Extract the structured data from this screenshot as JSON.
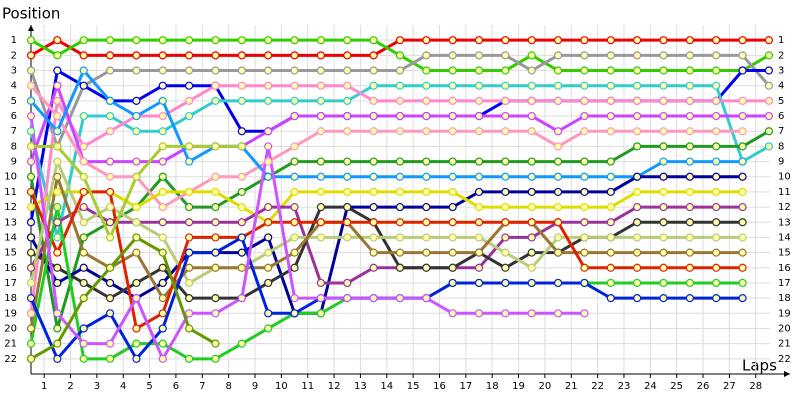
{
  "chart_data": {
    "type": "line",
    "y_axis_label": "Position",
    "x_axis_label": "Laps",
    "x": [
      0,
      1,
      2,
      3,
      4,
      5,
      6,
      7,
      8,
      9,
      10,
      11,
      12,
      13,
      14,
      15,
      16,
      17,
      18,
      19,
      20,
      21,
      22,
      23,
      24,
      25,
      26,
      27,
      28
    ],
    "xlim": [
      0,
      28.8
    ],
    "xticks": [
      {
        "value": 0.5,
        "label": "1"
      },
      {
        "value": 1.5,
        "label": "2"
      },
      {
        "value": 2.5,
        "label": "3"
      },
      {
        "value": 3.5,
        "label": "4"
      },
      {
        "value": 4.5,
        "label": "5"
      },
      {
        "value": 5.5,
        "label": "6"
      },
      {
        "value": 6.5,
        "label": "7"
      },
      {
        "value": 7.5,
        "label": "8"
      },
      {
        "value": 8.5,
        "label": "9"
      },
      {
        "value": 9.5,
        "label": "10"
      },
      {
        "value": 10.5,
        "label": "11"
      },
      {
        "value": 11.5,
        "label": "12"
      },
      {
        "value": 12.5,
        "label": "13"
      },
      {
        "value": 13.5,
        "label": "14"
      },
      {
        "value": 14.5,
        "label": "15"
      },
      {
        "value": 15.5,
        "label": "16"
      },
      {
        "value": 16.5,
        "label": "17"
      },
      {
        "value": 17.5,
        "label": "18"
      },
      {
        "value": 18.5,
        "label": "19"
      },
      {
        "value": 19.5,
        "label": "20"
      },
      {
        "value": 20.5,
        "label": "21"
      },
      {
        "value": 21.5,
        "label": "22"
      },
      {
        "value": 22.5,
        "label": "23"
      },
      {
        "value": 23.5,
        "label": "24"
      },
      {
        "value": 24.5,
        "label": "25"
      },
      {
        "value": 25.5,
        "label": "26"
      },
      {
        "value": 26.5,
        "label": "27"
      },
      {
        "value": 27.5,
        "label": "28"
      }
    ],
    "ylim": [
      23,
      0
    ],
    "yticks": [
      1,
      2,
      3,
      4,
      5,
      6,
      7,
      8,
      9,
      10,
      11,
      12,
      13,
      14,
      15,
      16,
      17,
      18,
      19,
      20,
      21,
      22
    ],
    "end_labels": [
      1,
      2,
      3,
      4,
      5,
      6,
      7,
      8,
      9,
      10,
      11,
      12,
      13,
      14,
      15,
      16,
      17,
      18,
      19,
      20,
      21,
      22
    ],
    "grid": true,
    "series": [
      {
        "color": "#ee0000",
        "values": [
          2,
          1,
          2,
          2,
          2,
          2,
          2,
          2,
          2,
          2,
          2,
          2,
          2,
          2,
          1,
          1,
          1,
          1,
          1,
          1,
          1,
          1,
          1,
          1,
          1,
          1,
          1,
          1,
          1
        ]
      },
      {
        "color": "#33cc00",
        "values": [
          1,
          2,
          1,
          1,
          1,
          1,
          1,
          1,
          1,
          1,
          1,
          1,
          1,
          1,
          2,
          3,
          3,
          3,
          3,
          2,
          3,
          3,
          3,
          3,
          3,
          3,
          3,
          3,
          2
        ]
      },
      {
        "color": "#999999",
        "values": [
          3,
          8,
          4,
          3,
          3,
          3,
          3,
          3,
          3,
          3,
          3,
          3,
          3,
          3,
          3,
          2,
          2,
          2,
          2,
          3,
          2,
          2,
          2,
          2,
          2,
          2,
          2,
          2,
          4
        ]
      },
      {
        "color": "#0000ee",
        "values": [
          13,
          3,
          4,
          5,
          5,
          4,
          4,
          4,
          7,
          7,
          6,
          6,
          6,
          6,
          6,
          6,
          6,
          6,
          5,
          5,
          5,
          5,
          5,
          5,
          5,
          5,
          5,
          3,
          3
        ]
      },
      {
        "color": "#33cccc",
        "values": [
          7,
          14,
          6,
          6,
          7,
          7,
          6,
          5,
          5,
          5,
          5,
          5,
          5,
          4,
          4,
          4,
          4,
          4,
          4,
          4,
          4,
          4,
          4,
          4,
          4,
          4,
          4,
          9,
          8
        ]
      },
      {
        "color": "#ff88cc",
        "values": [
          19,
          5,
          8,
          7,
          6,
          6,
          5,
          4,
          4,
          4,
          4,
          4,
          4,
          5,
          5,
          5,
          5,
          5,
          5,
          5,
          5,
          5,
          5,
          5,
          5,
          5,
          5,
          5,
          5
        ]
      },
      {
        "color": "#cc44ff",
        "values": [
          9,
          4,
          9,
          9,
          9,
          9,
          8,
          8,
          8,
          7,
          6,
          6,
          6,
          6,
          6,
          6,
          6,
          6,
          6,
          6,
          7,
          6,
          6,
          6,
          6,
          6,
          6,
          6,
          6
        ]
      },
      {
        "color": "#229922",
        "values": [
          10,
          20,
          14,
          13,
          12,
          10,
          12,
          12,
          11,
          10,
          9,
          9,
          9,
          9,
          9,
          9,
          9,
          9,
          9,
          9,
          9,
          9,
          9,
          8,
          8,
          8,
          8,
          8,
          7
        ]
      },
      {
        "color": "#ff99bb",
        "values": [
          4,
          6,
          9,
          10,
          10,
          12,
          11,
          10,
          10,
          9,
          8,
          7,
          7,
          7,
          7,
          7,
          7,
          7,
          7,
          7,
          8,
          7,
          7,
          7,
          7,
          7,
          7,
          7,
          null
        ]
      },
      {
        "color": "#1199ff",
        "values": [
          5,
          7,
          3,
          5,
          6,
          5,
          9,
          8,
          8,
          10,
          10,
          10,
          10,
          10,
          10,
          10,
          10,
          10,
          10,
          10,
          10,
          10,
          10,
          10,
          9,
          9,
          9,
          9,
          null
        ]
      },
      {
        "color": "#000099",
        "values": [
          14,
          17,
          16,
          17,
          18,
          17,
          15,
          15,
          15,
          14,
          19,
          19,
          12,
          12,
          12,
          12,
          12,
          11,
          11,
          11,
          11,
          11,
          11,
          10,
          10,
          10,
          10,
          10,
          null
        ]
      },
      {
        "color": "#dddd00",
        "values": [
          12,
          11,
          11,
          11,
          12,
          11,
          11,
          11,
          12,
          13,
          11,
          11,
          11,
          11,
          11,
          11,
          11,
          12,
          12,
          12,
          12,
          12,
          12,
          11,
          11,
          11,
          11,
          11,
          null
        ]
      },
      {
        "color": "#993399",
        "values": [
          16,
          13,
          12,
          13,
          13,
          13,
          13,
          13,
          13,
          12,
          12,
          17,
          17,
          16,
          16,
          16,
          16,
          16,
          14,
          14,
          13,
          13,
          13,
          12,
          12,
          12,
          12,
          12,
          null
        ]
      },
      {
        "color": "#333333",
        "values": [
          15,
          16,
          17,
          18,
          17,
          16,
          18,
          18,
          18,
          17,
          16,
          12,
          12,
          13,
          16,
          16,
          16,
          15,
          16,
          15,
          15,
          14,
          14,
          13,
          13,
          13,
          13,
          13,
          null
        ]
      },
      {
        "color": "#bbcc77",
        "values": [
          17,
          9,
          13,
          12,
          13,
          14,
          17,
          16,
          16,
          15,
          14,
          14,
          14,
          14,
          14,
          14,
          14,
          14,
          15,
          16,
          14,
          14,
          14,
          14,
          14,
          14,
          14,
          14,
          null
        ]
      },
      {
        "color": "#997733",
        "values": [
          20,
          10,
          15,
          16,
          15,
          18,
          16,
          16,
          16,
          16,
          15,
          13,
          13,
          15,
          15,
          15,
          15,
          15,
          13,
          13,
          15,
          15,
          15,
          15,
          15,
          15,
          15,
          15,
          null
        ]
      },
      {
        "color": "#dd2200",
        "values": [
          11,
          15,
          11,
          11,
          20,
          19,
          14,
          14,
          14,
          13,
          13,
          13,
          13,
          13,
          13,
          13,
          13,
          13,
          13,
          13,
          13,
          16,
          16,
          16,
          16,
          16,
          16,
          16,
          null
        ]
      },
      {
        "color": "#22cc22",
        "values": [
          21,
          12,
          22,
          22,
          21,
          21,
          22,
          22,
          21,
          20,
          19,
          19,
          18,
          18,
          18,
          18,
          17,
          17,
          17,
          17,
          17,
          17,
          17,
          17,
          17,
          17,
          17,
          17,
          null
        ]
      },
      {
        "color": "#0022dd",
        "values": [
          18,
          22,
          20,
          19,
          22,
          20,
          15,
          15,
          14,
          19,
          19,
          18,
          18,
          18,
          18,
          18,
          17,
          17,
          17,
          17,
          17,
          17,
          18,
          18,
          18,
          18,
          18,
          18,
          null
        ]
      },
      {
        "color": "#cc55ff",
        "values": [
          6,
          19,
          21,
          21,
          18,
          22,
          19,
          19,
          18,
          8,
          18,
          18,
          18,
          18,
          18,
          18,
          19,
          19,
          19,
          19,
          19,
          19,
          null,
          null,
          null,
          null,
          null,
          null,
          null
        ]
      },
      {
        "color": "#aacc33",
        "values": [
          8,
          8,
          10,
          14,
          10,
          8,
          8,
          8,
          8,
          null,
          null,
          null,
          null,
          null,
          null,
          null,
          null,
          null,
          null,
          null,
          null,
          null,
          null,
          null,
          null,
          null,
          null,
          null,
          null
        ]
      },
      {
        "color": "#669900",
        "values": [
          22,
          21,
          18,
          16,
          14,
          15,
          20,
          21,
          null,
          null,
          null,
          null,
          null,
          null,
          null,
          null,
          null,
          null,
          null,
          null,
          null,
          null,
          null,
          null,
          null,
          null,
          null,
          null,
          null
        ]
      }
    ]
  }
}
